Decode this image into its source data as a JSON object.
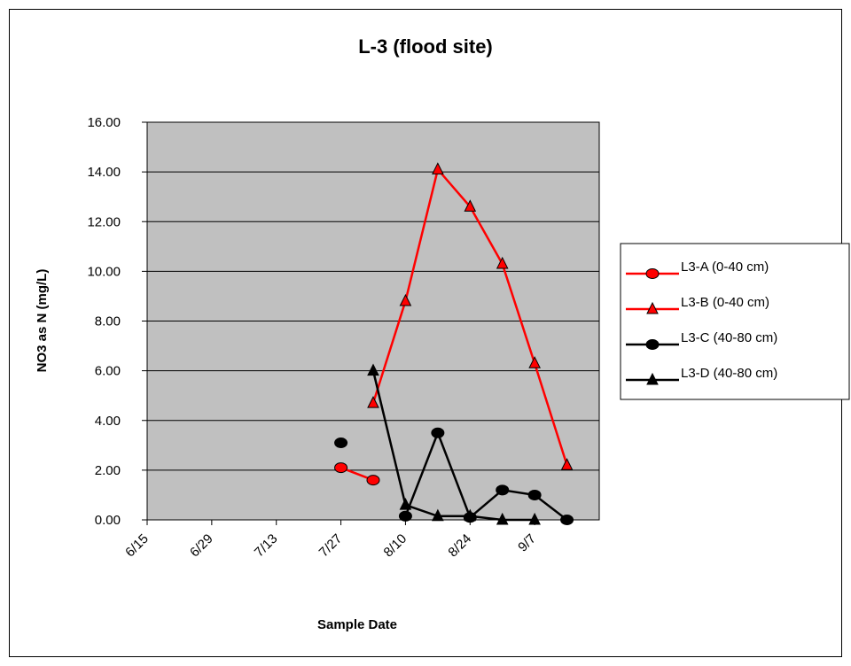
{
  "chart_data": {
    "type": "line",
    "title": "L-3 (flood site)",
    "xlabel": "Sample Date",
    "ylabel": "NO3 as N (mg/L)",
    "ylim": [
      0,
      16
    ],
    "y_ticks": [
      "0.00",
      "2.00",
      "4.00",
      "6.00",
      "8.00",
      "10.00",
      "12.00",
      "14.00",
      "16.00"
    ],
    "x_ticks": [
      "6/15",
      "6/29",
      "7/13",
      "7/27",
      "8/10",
      "8/24",
      "9/7"
    ],
    "x_date_range": [
      "6/15",
      "9/21"
    ],
    "grid": "horizontal",
    "legend_position": "right",
    "plot_background": "#C0C0C0",
    "series": [
      {
        "name": "L3-A (0-40 cm)",
        "color": "#FF0000",
        "line_color": "#FF0000",
        "marker": "circle",
        "marker_fill": "#FF0000",
        "points": [
          {
            "x": "7/27",
            "y": 2.1
          },
          {
            "x": "8/3",
            "y": 1.6
          }
        ]
      },
      {
        "name": "L3-B (0-40 cm)",
        "color": "#FF0000",
        "line_color": "#FF0000",
        "marker": "triangle",
        "marker_fill": "#FF0000",
        "points": [
          {
            "x": "8/3",
            "y": 4.7
          },
          {
            "x": "8/10",
            "y": 8.8
          },
          {
            "x": "8/17",
            "y": 14.1
          },
          {
            "x": "8/24",
            "y": 12.6
          },
          {
            "x": "8/31",
            "y": 10.3
          },
          {
            "x": "9/7",
            "y": 6.3
          },
          {
            "x": "9/14",
            "y": 2.2
          }
        ]
      },
      {
        "name": "L3-C (40-80 cm)",
        "color": "#000000",
        "line_color": "#000000",
        "marker": "circle",
        "marker_fill": "#000000",
        "points": [
          {
            "x": "7/27",
            "y": 3.1
          },
          {
            "x": "8/10",
            "y": 0.15,
            "break_before": true
          },
          {
            "x": "8/17",
            "y": 3.5
          },
          {
            "x": "8/24",
            "y": 0.1
          },
          {
            "x": "8/31",
            "y": 1.2
          },
          {
            "x": "9/7",
            "y": 1.0
          },
          {
            "x": "9/14",
            "y": 0.0
          }
        ]
      },
      {
        "name": "L3-D (40-80 cm)",
        "color": "#000000",
        "line_color": "#000000",
        "marker": "triangle",
        "marker_fill": "#000000",
        "points": [
          {
            "x": "8/3",
            "y": 6.0
          },
          {
            "x": "8/10",
            "y": 0.6
          },
          {
            "x": "8/17",
            "y": 0.15
          },
          {
            "x": "8/24",
            "y": 0.15
          },
          {
            "x": "8/31",
            "y": 0.0
          },
          {
            "x": "9/7",
            "y": 0.0
          }
        ]
      }
    ]
  }
}
